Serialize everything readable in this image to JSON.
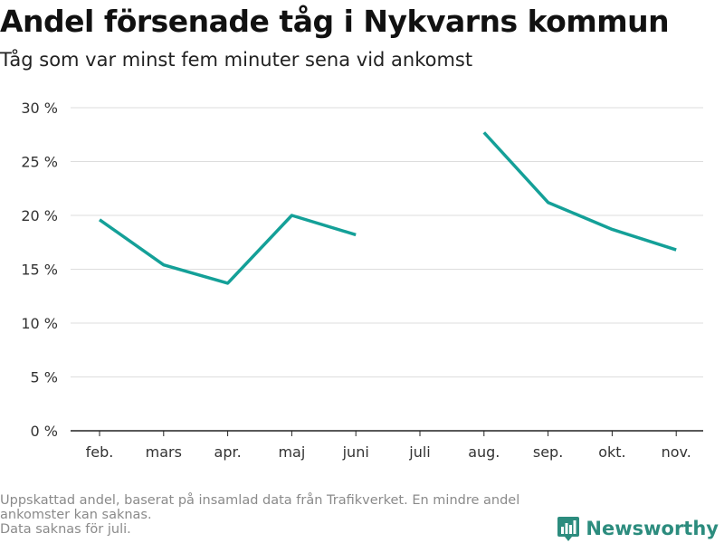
{
  "title": "Andel försenade tåg i Nykvarns kommun",
  "subtitle": "Tåg som var minst fem minuter sena vid ankomst",
  "footnote": {
    "line1": "Uppskattad andel, baserat på insamlad data från Trafikverket. En mindre andel ankomster kan saknas.",
    "line2": "Data saknas för juli."
  },
  "brand": {
    "name": "Newsworthy",
    "icon": "newsworthy-logo-icon",
    "color": "#2c8c7e"
  },
  "chart_data": {
    "type": "line",
    "categories": [
      "feb.",
      "mars",
      "apr.",
      "maj",
      "juni",
      "juli",
      "aug.",
      "sep.",
      "okt.",
      "nov."
    ],
    "series": [
      {
        "values": [
          19.6,
          15.4,
          13.7,
          20.0,
          18.2,
          null,
          27.7,
          21.2,
          18.7,
          16.8
        ],
        "color": "#14a098"
      }
    ],
    "ylim": [
      0,
      30
    ],
    "yticks": [
      0,
      5,
      10,
      15,
      20,
      25,
      30
    ],
    "ytick_labels": [
      "0 %",
      "5 %",
      "10 %",
      "15 %",
      "20 %",
      "25 %",
      "30 %"
    ],
    "grid": true,
    "xlabel": "",
    "ylabel": ""
  }
}
